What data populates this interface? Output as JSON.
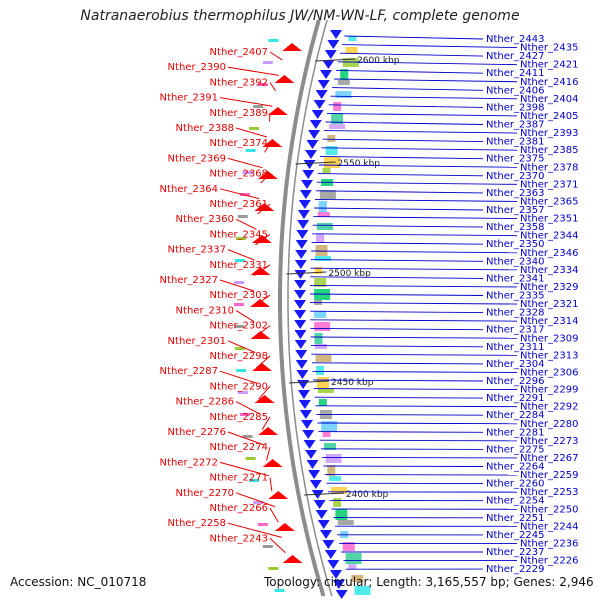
{
  "title": "Natranaerobius thermophilus JW/NM-WN-LF, complete genome",
  "accession": "Accession: NC_010718",
  "summary": "Topology: circular; Length: 3,165,557 bp; Genes: 2,946",
  "colors": {
    "forward_label": "#e60000",
    "reverse_label": "#0000cc",
    "forward_arrow": "#ff0000",
    "reverse_arrow": "#1a1aff",
    "backbone": "#8c8c8c"
  },
  "ticks": [
    {
      "label": "2600 kbp",
      "pos": 2600
    },
    {
      "label": "2550 kbp",
      "pos": 2550
    },
    {
      "label": "2500 kbp",
      "pos": 2500
    },
    {
      "label": "2450 kbp",
      "pos": 2450
    },
    {
      "label": "2400 kbp",
      "pos": 2400
    }
  ],
  "forward_genes": [
    "Nther_2407",
    "Nther_2390",
    "Nther_2392",
    "Nther_2391",
    "Nther_2389",
    "Nther_2388",
    "Nther_2374",
    "Nther_2369",
    "Nther_2368",
    "Nther_2364",
    "Nther_2361",
    "Nther_2360",
    "Nther_2345",
    "Nther_2337",
    "Nther_2331",
    "Nther_2327",
    "Nther_2303",
    "Nther_2310",
    "Nther_2302",
    "Nther_2301",
    "Nther_2298",
    "Nther_2287",
    "Nther_2290",
    "Nther_2286",
    "Nther_2285",
    "Nther_2276",
    "Nther_2274",
    "Nther_2272",
    "Nther_2271",
    "Nther_2270",
    "Nther_2266",
    "Nther_2258",
    "Nther_2243"
  ],
  "reverse_genes": [
    "Nther_2443",
    "Nther_2435",
    "Nther_2427",
    "Nther_2421",
    "Nther_2411",
    "Nther_2416",
    "Nther_2406",
    "Nther_2404",
    "Nther_2398",
    "Nther_2405",
    "Nther_2387",
    "Nther_2393",
    "Nther_2381",
    "Nther_2385",
    "Nther_2375",
    "Nther_2378",
    "Nther_2370",
    "Nther_2371",
    "Nther_2363",
    "Nther_2365",
    "Nther_2357",
    "Nther_2351",
    "Nther_2358",
    "Nther_2344",
    "Nther_2350",
    "Nther_2346",
    "Nther_2340",
    "Nther_2334",
    "Nther_2341",
    "Nther_2329",
    "Nther_2335",
    "Nther_2321",
    "Nther_2328",
    "Nther_2314",
    "Nther_2317",
    "Nther_2309",
    "Nther_2311",
    "Nther_2313",
    "Nther_2304",
    "Nther_2306",
    "Nther_2296",
    "Nther_2299",
    "Nther_2291",
    "Nther_2292",
    "Nther_2284",
    "Nther_2280",
    "Nther_2281",
    "Nther_2273",
    "Nther_2275",
    "Nther_2267",
    "Nther_2264",
    "Nther_2259",
    "Nther_2260",
    "Nther_2253",
    "Nther_2254",
    "Nther_2250",
    "Nther_2251",
    "Nther_2244",
    "Nther_2245",
    "Nther_2236",
    "Nther_2237",
    "Nther_2226",
    "Nther_2229"
  ]
}
